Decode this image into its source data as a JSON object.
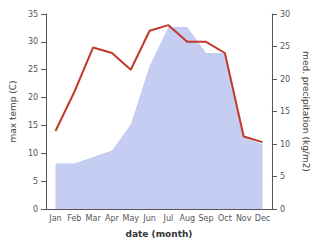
{
  "chart_data": {
    "type": "line",
    "categories": [
      "Jan",
      "Feb",
      "Mar",
      "Apr",
      "May",
      "Jun",
      "Jul",
      "Aug",
      "Sep",
      "Oct",
      "Nov",
      "Dec"
    ],
    "xlabel": "date (month)",
    "ylabel": "max temp (C)",
    "y2label": "med. precipitation (kg/m2)",
    "series": [
      {
        "type": "area",
        "color": "#c5cef2",
        "axis": "y2",
        "values": [
          7,
          7,
          8,
          9,
          13,
          22,
          28,
          28,
          24,
          24,
          11,
          10
        ]
      },
      {
        "type": "line",
        "color": "#c0392b",
        "values": [
          14,
          21,
          29,
          28,
          25,
          32,
          33,
          30,
          30,
          28,
          13,
          12
        ]
      }
    ],
    "ylim": [
      0,
      35
    ],
    "yticks": [
      0,
      5,
      10,
      15,
      20,
      25,
      30,
      35
    ],
    "y2lim": [
      0,
      30
    ],
    "y2ticks": [
      0,
      5,
      10,
      15,
      20,
      25,
      30
    ],
    "grid": false
  }
}
